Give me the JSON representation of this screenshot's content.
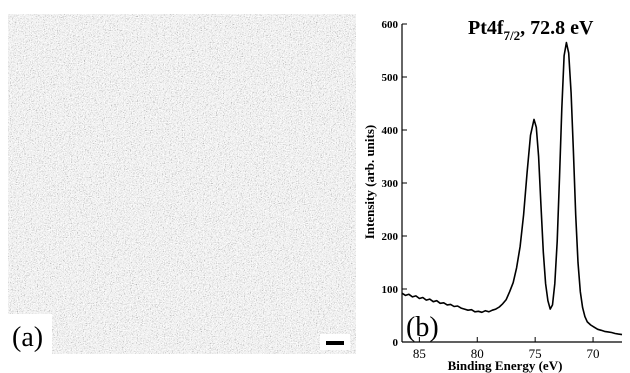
{
  "panel_a": {
    "label": "(a)"
  },
  "chart_data": {
    "type": "line",
    "panel_label": "(b)",
    "title_main": "Pt4f",
    "title_sub": "7/2",
    "title_rest": ", 72.8 eV",
    "xlabel": "Binding Energy (eV)",
    "ylabel": "Intensity (arb. units)",
    "xlim": [
      86.5,
      67.5
    ],
    "ylim": [
      0,
      600
    ],
    "x_reversed": true,
    "x_ticks": [
      85,
      80,
      75,
      70
    ],
    "y_ticks": [
      0,
      100,
      200,
      300,
      400,
      500,
      600
    ],
    "grid": false,
    "series": [
      {
        "x": [
          86.5,
          86.2,
          85.9,
          85.6,
          85.3,
          85.0,
          84.7,
          84.4,
          84.1,
          83.8,
          83.5,
          83.2,
          82.9,
          82.6,
          82.3,
          82.0,
          81.7,
          81.4,
          81.1,
          80.8,
          80.5,
          80.2,
          79.9,
          79.6,
          79.3,
          79.0,
          78.7,
          78.4,
          78.1,
          77.8,
          77.5,
          77.2,
          76.9,
          76.6,
          76.3,
          76.0,
          75.7,
          75.4,
          75.1,
          74.9,
          74.7,
          74.5,
          74.3,
          74.1,
          73.9,
          73.7,
          73.5,
          73.3,
          73.1,
          72.9,
          72.7,
          72.5,
          72.3,
          72.1,
          71.9,
          71.7,
          71.5,
          71.3,
          71.1,
          70.9,
          70.7,
          70.5,
          70.2,
          69.9,
          69.6,
          69.3,
          69.0,
          68.7,
          68.4,
          68.1,
          67.8,
          67.5
        ],
        "y": [
          92,
          88,
          90,
          85,
          87,
          82,
          84,
          79,
          81,
          76,
          78,
          73,
          74,
          70,
          71,
          67,
          68,
          64,
          62,
          60,
          61,
          57,
          58,
          56,
          59,
          57,
          60,
          62,
          66,
          72,
          80,
          95,
          112,
          140,
          180,
          240,
          320,
          390,
          420,
          405,
          350,
          260,
          170,
          110,
          78,
          62,
          70,
          110,
          190,
          310,
          440,
          540,
          565,
          545,
          470,
          360,
          240,
          150,
          95,
          65,
          48,
          38,
          32,
          28,
          24,
          22,
          20,
          19,
          18,
          16,
          15,
          14
        ]
      }
    ]
  }
}
